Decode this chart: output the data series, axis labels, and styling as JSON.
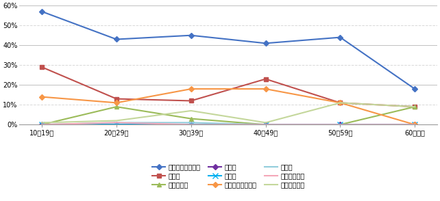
{
  "categories": [
    "10～19歳",
    "20～29歳",
    "30～39歳",
    "40～49歳",
    "50～59歳",
    "60歳以上"
  ],
  "series": [
    {
      "label": "就職・転職・起業",
      "color": "#4472C4",
      "marker": "D",
      "markersize": 4,
      "linestyle": "-",
      "linewidth": 1.5,
      "values": [
        57,
        43,
        45,
        41,
        44,
        18
      ]
    },
    {
      "label": "転　勤",
      "color": "#C0504D",
      "marker": "s",
      "markersize": 4,
      "linestyle": "-",
      "linewidth": 1.5,
      "values": [
        29,
        13,
        12,
        23,
        11,
        9
      ]
    },
    {
      "label": "退職・廃業",
      "color": "#9BBB59",
      "marker": "^",
      "markersize": 5,
      "linestyle": "-",
      "linewidth": 1.5,
      "values": [
        0,
        9,
        3,
        0,
        0,
        9
      ]
    },
    {
      "label": "就　学",
      "color": "#7030A0",
      "marker": "D",
      "markersize": 4,
      "linestyle": "-",
      "linewidth": 1.5,
      "values": [
        0,
        0,
        0,
        0,
        0,
        0
      ]
    },
    {
      "label": "卒　業",
      "color": "#00B0F0",
      "marker": "x",
      "markersize": 6,
      "linestyle": "-",
      "linewidth": 1.5,
      "values": [
        0,
        0,
        0,
        0,
        0,
        0
      ]
    },
    {
      "label": "結婚・離婚・縁組",
      "color": "#F79646",
      "marker": "D",
      "markersize": 4,
      "linestyle": "-",
      "linewidth": 1.5,
      "values": [
        14,
        11,
        18,
        18,
        11,
        0
      ]
    },
    {
      "label": "住　宅",
      "color": "#92CDDC",
      "marker": "none",
      "markersize": 4,
      "linestyle": "-",
      "linewidth": 1.5,
      "values": [
        0,
        1,
        1,
        0,
        0,
        0
      ]
    },
    {
      "label": "交通の利便性",
      "color": "#F4A7B9",
      "marker": "none",
      "markersize": 4,
      "linestyle": "-",
      "linewidth": 1.5,
      "values": [
        0,
        1,
        0,
        0,
        0,
        0
      ]
    },
    {
      "label": "生活の利便性",
      "color": "#C4D79B",
      "marker": "none",
      "markersize": 4,
      "linestyle": "-",
      "linewidth": 1.5,
      "values": [
        1,
        2,
        7,
        1,
        11,
        9
      ]
    }
  ],
  "ylim": [
    0,
    60
  ],
  "yticks": [
    0,
    10,
    20,
    30,
    40,
    50,
    60
  ],
  "background_color": "#FFFFFF",
  "grid_solid_color": "#C0C0C0",
  "grid_dashed_color": "#D8D8D8",
  "legend_order": [
    0,
    1,
    2,
    3,
    4,
    5,
    6,
    7,
    8
  ],
  "figsize": [
    6.42,
    2.94
  ],
  "dpi": 100,
  "font_size_tick": 7,
  "font_size_legend": 7
}
